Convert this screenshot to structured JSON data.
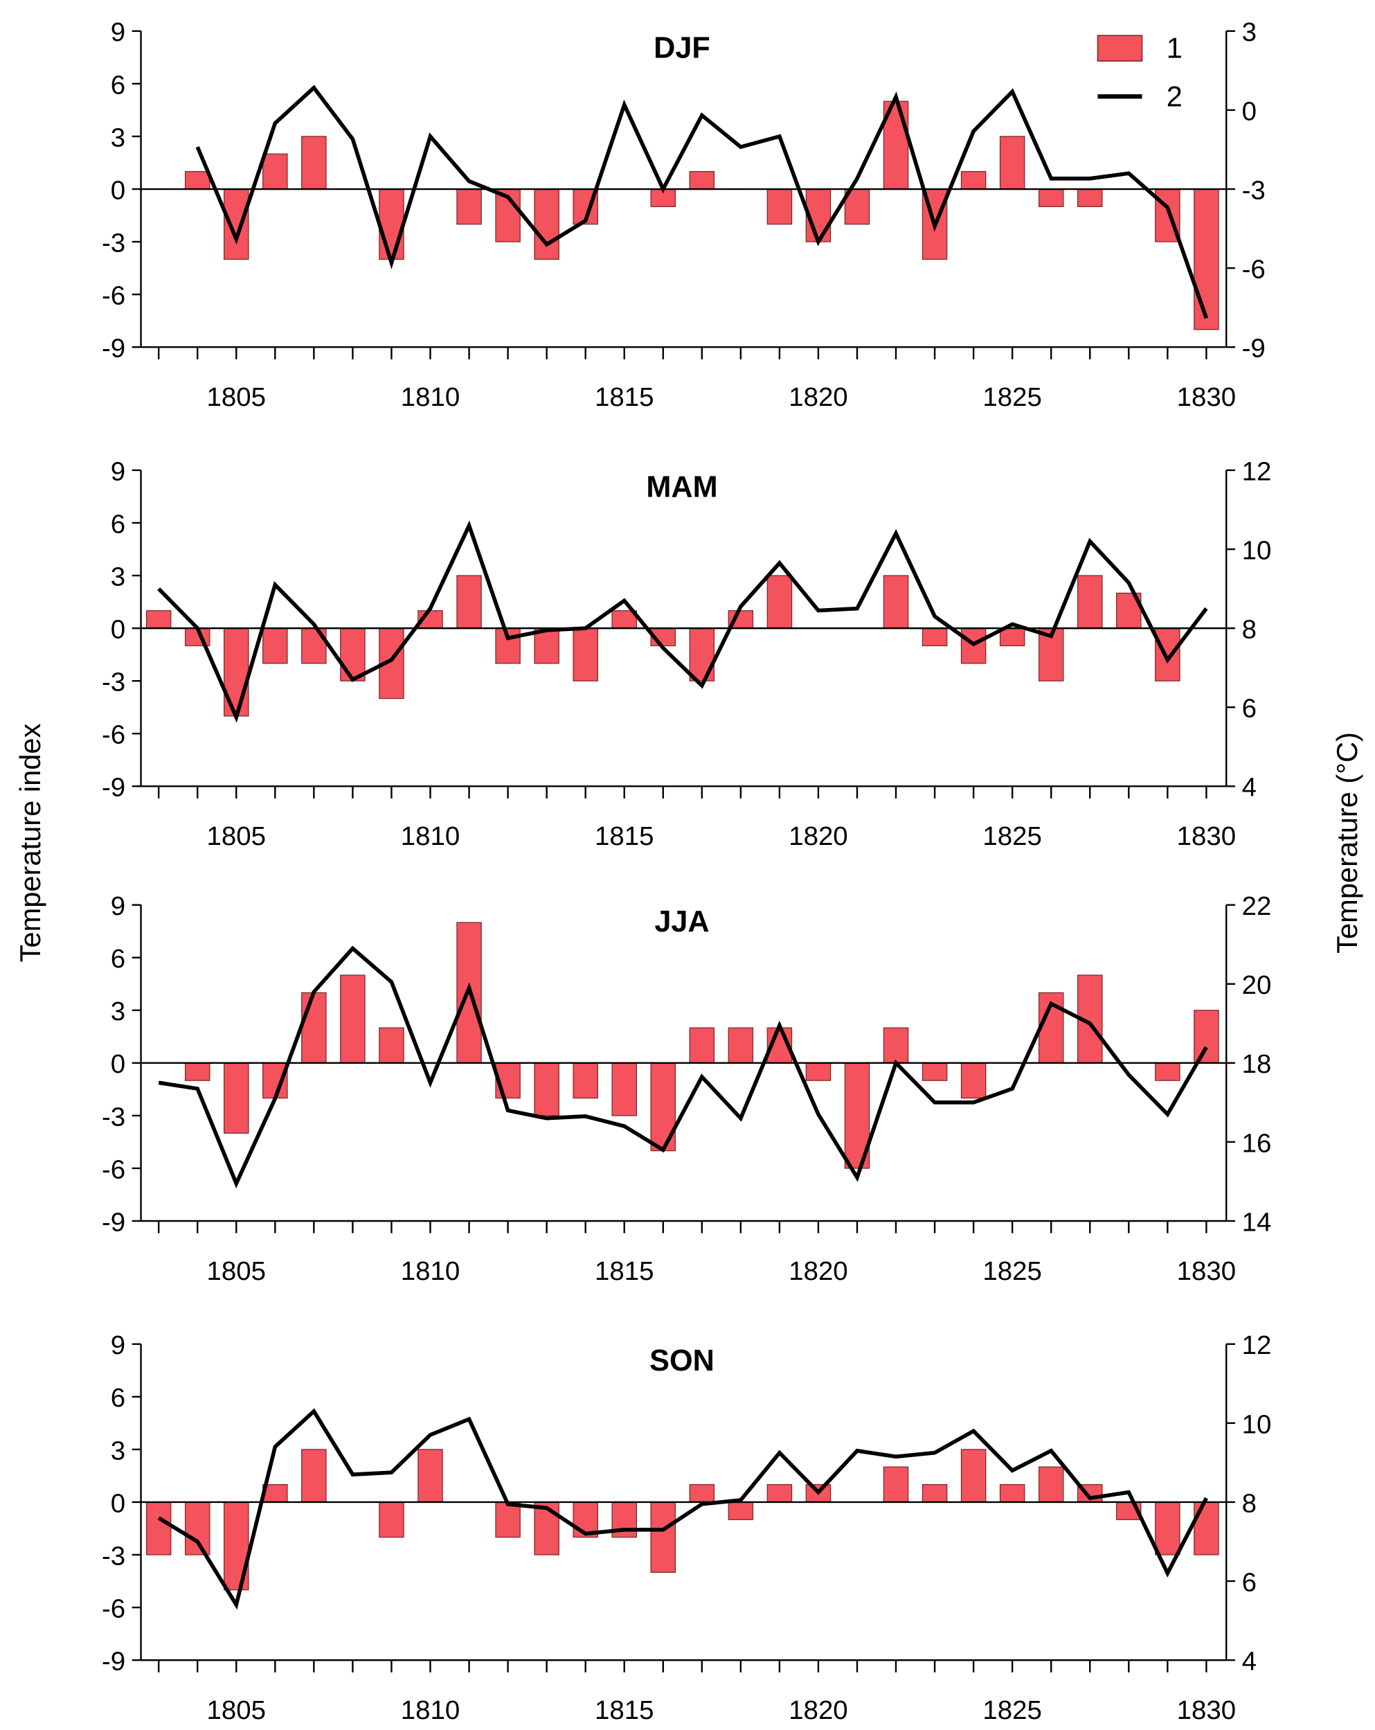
{
  "chart_data": [
    {
      "type": "bar+line",
      "title": "DJF",
      "x": [
        1803,
        1804,
        1805,
        1806,
        1807,
        1808,
        1809,
        1810,
        1811,
        1812,
        1813,
        1814,
        1815,
        1816,
        1817,
        1818,
        1819,
        1820,
        1821,
        1822,
        1823,
        1824,
        1825,
        1826,
        1827,
        1828,
        1829,
        1830
      ],
      "series": [
        {
          "name": "1",
          "axis": "left",
          "kind": "bar",
          "values": [
            null,
            1,
            -4,
            2,
            3,
            0,
            -4,
            0,
            -2,
            -3,
            -4,
            -2,
            0,
            -1,
            1,
            0,
            -2,
            -3,
            -2,
            5,
            -4,
            1,
            3,
            -1,
            -1,
            0,
            -3,
            -8
          ]
        },
        {
          "name": "2",
          "axis": "right",
          "kind": "line",
          "values": [
            null,
            -1.4,
            -4.9,
            -0.5,
            0.85,
            -1.1,
            -5.8,
            -1.0,
            -2.7,
            -3.3,
            -5.1,
            -4.2,
            0.2,
            -3.0,
            -0.2,
            -1.4,
            -1.0,
            -5.0,
            -2.6,
            0.5,
            -4.4,
            -0.8,
            0.7,
            -2.6,
            -2.6,
            -2.4,
            -3.7,
            -7.9
          ]
        }
      ],
      "ylim_left": [
        -9,
        9
      ],
      "yticks_left": [
        "9",
        "6",
        "3",
        "0",
        "-3",
        "-6",
        "-9"
      ],
      "ylim_right": [
        -9,
        3
      ],
      "yticks_right": [
        "3",
        "0",
        "-3",
        "-6",
        "-9"
      ],
      "xticks": [
        "1805",
        "1810",
        "1815",
        "1820",
        "1825",
        "1830"
      ]
    },
    {
      "type": "bar+line",
      "title": "MAM",
      "x": [
        1803,
        1804,
        1805,
        1806,
        1807,
        1808,
        1809,
        1810,
        1811,
        1812,
        1813,
        1814,
        1815,
        1816,
        1817,
        1818,
        1819,
        1820,
        1821,
        1822,
        1823,
        1824,
        1825,
        1826,
        1827,
        1828,
        1829,
        1830
      ],
      "series": [
        {
          "name": "1",
          "axis": "left",
          "kind": "bar",
          "values": [
            1,
            -1,
            -5,
            -2,
            -2,
            -3,
            -4,
            1,
            3,
            -2,
            -2,
            -3,
            1,
            -1,
            -3,
            1,
            3,
            0,
            0,
            3,
            -1,
            -2,
            -1,
            -3,
            3,
            2,
            -3,
            0
          ]
        },
        {
          "name": "2",
          "axis": "right",
          "kind": "line",
          "values": [
            9.0,
            8.0,
            5.75,
            9.1,
            8.1,
            6.7,
            7.2,
            8.5,
            10.6,
            7.75,
            7.95,
            8.0,
            8.7,
            7.5,
            6.55,
            8.55,
            9.65,
            8.45,
            8.5,
            10.4,
            8.3,
            7.6,
            8.1,
            7.8,
            10.2,
            9.15,
            7.2,
            8.5
          ]
        }
      ],
      "ylim_left": [
        -9,
        9
      ],
      "yticks_left": [
        "9",
        "6",
        "3",
        "0",
        "-3",
        "-6",
        "-9"
      ],
      "ylim_right": [
        4,
        12
      ],
      "yticks_right": [
        "12",
        "10",
        "8",
        "6",
        "4"
      ],
      "xticks": [
        "1805",
        "1810",
        "1815",
        "1820",
        "1825",
        "1830"
      ]
    },
    {
      "type": "bar+line",
      "title": "JJA",
      "x": [
        1803,
        1804,
        1805,
        1806,
        1807,
        1808,
        1809,
        1810,
        1811,
        1812,
        1813,
        1814,
        1815,
        1816,
        1817,
        1818,
        1819,
        1820,
        1821,
        1822,
        1823,
        1824,
        1825,
        1826,
        1827,
        1828,
        1829,
        1830
      ],
      "series": [
        {
          "name": "1",
          "axis": "left",
          "kind": "bar",
          "values": [
            0,
            -1,
            -4,
            -2,
            4,
            5,
            2,
            0,
            8,
            -2,
            -3,
            -2,
            -3,
            -5,
            2,
            2,
            2,
            -1,
            -6,
            2,
            -1,
            -2,
            0,
            4,
            5,
            0,
            -1,
            3
          ]
        },
        {
          "name": "2",
          "axis": "right",
          "kind": "line",
          "values": [
            17.5,
            17.35,
            14.95,
            17.1,
            19.8,
            20.9,
            20.05,
            17.5,
            19.9,
            16.8,
            16.6,
            16.65,
            16.4,
            15.8,
            17.65,
            16.6,
            18.95,
            16.7,
            15.1,
            18.0,
            17.0,
            17.0,
            17.35,
            19.5,
            19.0,
            17.7,
            16.7,
            18.4
          ]
        }
      ],
      "ylim_left": [
        -9,
        9
      ],
      "yticks_left": [
        "9",
        "6",
        "3",
        "0",
        "-3",
        "-6",
        "-9"
      ],
      "ylim_right": [
        14,
        22
      ],
      "yticks_right": [
        "22",
        "20",
        "18",
        "16",
        "14"
      ],
      "xticks": [
        "1805",
        "1810",
        "1815",
        "1820",
        "1825",
        "1830"
      ]
    },
    {
      "type": "bar+line",
      "title": "SON",
      "x": [
        1803,
        1804,
        1805,
        1806,
        1807,
        1808,
        1809,
        1810,
        1811,
        1812,
        1813,
        1814,
        1815,
        1816,
        1817,
        1818,
        1819,
        1820,
        1821,
        1822,
        1823,
        1824,
        1825,
        1826,
        1827,
        1828,
        1829,
        1830
      ],
      "series": [
        {
          "name": "1",
          "axis": "left",
          "kind": "bar",
          "values": [
            -3,
            -3,
            -5,
            1,
            3,
            0,
            -2,
            3,
            0,
            -2,
            -3,
            -2,
            -2,
            -4,
            1,
            -1,
            1,
            1,
            0,
            2,
            1,
            3,
            1,
            2,
            1,
            -1,
            -3,
            -3
          ]
        },
        {
          "name": "2",
          "axis": "right",
          "kind": "line",
          "values": [
            7.6,
            7.0,
            5.4,
            9.4,
            10.3,
            8.7,
            8.75,
            9.7,
            10.1,
            7.95,
            7.85,
            7.2,
            7.3,
            7.3,
            7.95,
            8.05,
            9.25,
            8.25,
            9.3,
            9.15,
            9.25,
            9.8,
            8.8,
            9.3,
            8.1,
            8.25,
            6.2,
            8.1
          ]
        }
      ],
      "ylim_left": [
        -9,
        9
      ],
      "yticks_left": [
        "9",
        "6",
        "3",
        "0",
        "-3",
        "-6",
        "-9"
      ],
      "ylim_right": [
        4,
        12
      ],
      "yticks_right": [
        "12",
        "10",
        "8",
        "6",
        "4"
      ],
      "xticks": [
        "1805",
        "1810",
        "1815",
        "1820",
        "1825",
        "1830"
      ]
    }
  ],
  "ylabel_left": "Temperature index",
  "ylabel_right": "Temperature (°C)",
  "legend": {
    "placement": "top-right",
    "entries": [
      "1",
      "2"
    ]
  },
  "colors": {
    "bar": "#f4525c",
    "bar_edge": "#7a2a2e",
    "line": "#000000"
  }
}
